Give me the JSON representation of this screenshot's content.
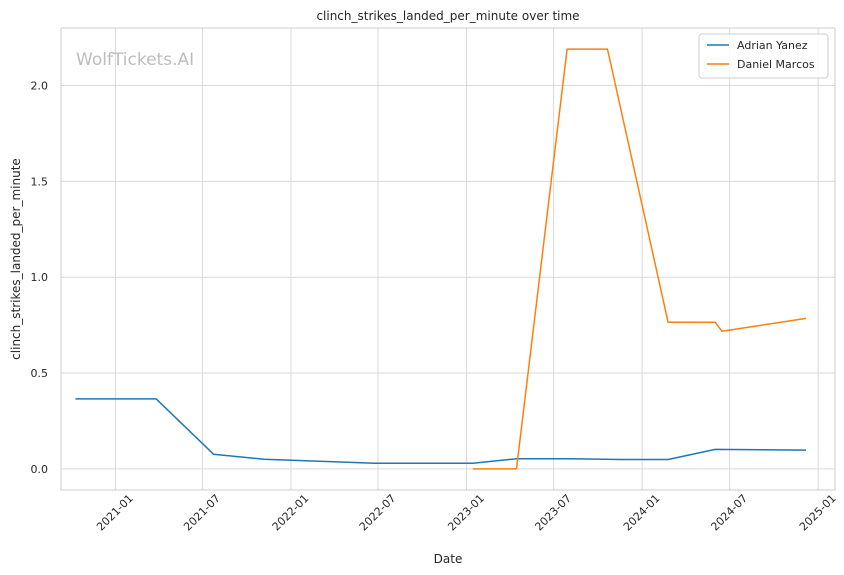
{
  "chart_data": {
    "type": "line",
    "title": "clinch_strikes_landed_per_minute over time",
    "xlabel": "Date",
    "ylabel": "clinch_strikes_landed_per_minute",
    "watermark": "WolfTickets.AI",
    "xlim": [
      "2020-09-10",
      "2025-02-05"
    ],
    "ylim": [
      -0.11,
      2.3
    ],
    "x_ticks": [
      "2021-01",
      "2021-07",
      "2022-01",
      "2022-07",
      "2023-01",
      "2023-07",
      "2024-01",
      "2024-07",
      "2025-01"
    ],
    "y_ticks": [
      "0.0",
      "0.5",
      "1.0",
      "1.5",
      "2.0"
    ],
    "grid": true,
    "legend_position": "top-right",
    "series": [
      {
        "name": "Adrian Yanez",
        "color": "#1f77b4",
        "points": [
          {
            "x": "2020-10-10",
            "y": 0.365
          },
          {
            "x": "2021-03-27",
            "y": 0.365
          },
          {
            "x": "2021-07-24",
            "y": 0.077
          },
          {
            "x": "2021-11-06",
            "y": 0.05
          },
          {
            "x": "2022-06-25",
            "y": 0.03
          },
          {
            "x": "2023-01-14",
            "y": 0.03
          },
          {
            "x": "2023-04-15",
            "y": 0.053
          },
          {
            "x": "2023-08-05",
            "y": 0.053
          },
          {
            "x": "2023-11-18",
            "y": 0.049
          },
          {
            "x": "2024-02-24",
            "y": 0.049
          },
          {
            "x": "2024-06-01",
            "y": 0.102
          },
          {
            "x": "2024-12-07",
            "y": 0.098
          }
        ]
      },
      {
        "name": "Daniel Marcos",
        "color": "#ff7f0e",
        "points": [
          {
            "x": "2023-01-14",
            "y": 0.0
          },
          {
            "x": "2023-04-15",
            "y": 0.0
          },
          {
            "x": "2023-07-29",
            "y": 2.19
          },
          {
            "x": "2023-10-21",
            "y": 2.19
          },
          {
            "x": "2024-02-24",
            "y": 0.765
          },
          {
            "x": "2024-06-01",
            "y": 0.765
          },
          {
            "x": "2024-06-15",
            "y": 0.718
          },
          {
            "x": "2024-12-07",
            "y": 0.785
          }
        ]
      }
    ]
  }
}
